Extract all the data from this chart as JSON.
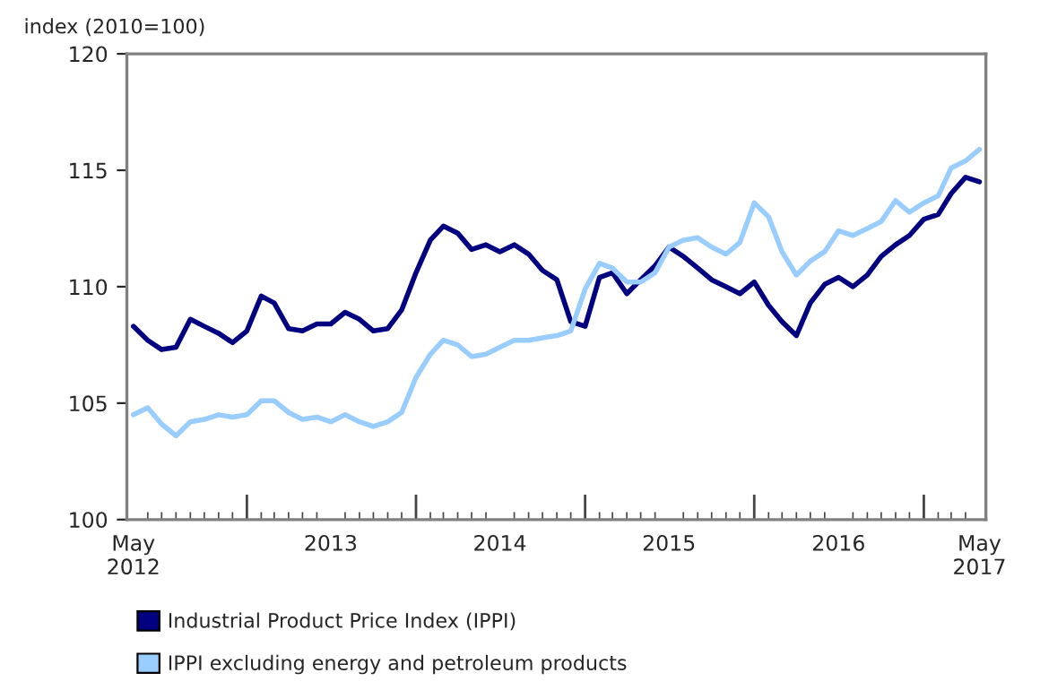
{
  "chart_data": {
    "type": "line",
    "ylabel": "index (2010=100)",
    "x": [
      "2012-05",
      "2012-06",
      "2012-07",
      "2012-08",
      "2012-09",
      "2012-10",
      "2012-11",
      "2012-12",
      "2013-01",
      "2013-02",
      "2013-03",
      "2013-04",
      "2013-05",
      "2013-06",
      "2013-07",
      "2013-08",
      "2013-09",
      "2013-10",
      "2013-11",
      "2013-12",
      "2014-01",
      "2014-02",
      "2014-03",
      "2014-04",
      "2014-05",
      "2014-06",
      "2014-07",
      "2014-08",
      "2014-09",
      "2014-10",
      "2014-11",
      "2014-12",
      "2015-01",
      "2015-02",
      "2015-03",
      "2015-04",
      "2015-05",
      "2015-06",
      "2015-07",
      "2015-08",
      "2015-09",
      "2015-10",
      "2015-11",
      "2015-12",
      "2016-01",
      "2016-02",
      "2016-03",
      "2016-04",
      "2016-05",
      "2016-06",
      "2016-07",
      "2016-08",
      "2016-09",
      "2016-10",
      "2016-11",
      "2016-12",
      "2017-01",
      "2017-02",
      "2017-03",
      "2017-04",
      "2017-05"
    ],
    "series": [
      {
        "name": "Industrial Product Price Index (IPPI)",
        "color": "#000080",
        "values": [
          108.3,
          107.7,
          107.3,
          107.4,
          108.6,
          108.3,
          108.0,
          107.6,
          108.1,
          109.6,
          109.3,
          108.2,
          108.1,
          108.4,
          108.4,
          108.9,
          108.6,
          108.1,
          108.2,
          109.0,
          110.6,
          112.0,
          112.6,
          112.3,
          111.6,
          111.8,
          111.5,
          111.8,
          111.4,
          110.7,
          110.3,
          108.5,
          108.3,
          110.4,
          110.6,
          109.7,
          110.3,
          110.9,
          111.7,
          111.3,
          110.8,
          110.3,
          110.0,
          109.7,
          110.2,
          109.2,
          108.5,
          107.9,
          109.3,
          110.1,
          110.4,
          110.0,
          110.5,
          111.3,
          111.8,
          112.2,
          112.9,
          113.1,
          114.0,
          114.7,
          114.5
        ]
      },
      {
        "name": "IPPI excluding energy and petroleum products",
        "color": "#99ccff",
        "values": [
          104.5,
          104.8,
          104.1,
          103.6,
          104.2,
          104.3,
          104.5,
          104.4,
          104.5,
          105.1,
          105.1,
          104.6,
          104.3,
          104.4,
          104.2,
          104.5,
          104.2,
          104.0,
          104.2,
          104.6,
          106.1,
          107.1,
          107.7,
          107.5,
          107.0,
          107.1,
          107.4,
          107.7,
          107.7,
          107.8,
          107.9,
          108.1,
          109.9,
          111.0,
          110.8,
          110.2,
          110.2,
          110.6,
          111.7,
          112.0,
          112.1,
          111.7,
          111.4,
          111.9,
          113.6,
          113.0,
          111.5,
          110.5,
          111.1,
          111.5,
          112.4,
          112.2,
          112.5,
          112.8,
          113.7,
          113.2,
          113.6,
          113.9,
          115.1,
          115.4,
          115.9
        ]
      }
    ],
    "xlim": [
      "2012-04-17",
      "2017-05-15"
    ],
    "xticks": [
      {
        "value": "2012-05",
        "label": "May\n2012"
      },
      {
        "value": "2013-01",
        "label": null
      },
      {
        "value": "2013-07",
        "label": "2013"
      },
      {
        "value": "2014-01",
        "label": null
      },
      {
        "value": "2014-07",
        "label": "2014"
      },
      {
        "value": "2015-01",
        "label": null
      },
      {
        "value": "2015-07",
        "label": "2015"
      },
      {
        "value": "2016-01",
        "label": null
      },
      {
        "value": "2016-07",
        "label": "2016"
      },
      {
        "value": "2017-01",
        "label": null
      },
      {
        "value": "2017-05",
        "label": "May\n2017"
      }
    ],
    "ylim": [
      100,
      120
    ],
    "yticks": [
      100,
      105,
      110,
      115,
      120
    ],
    "grid": false,
    "legend": "bottom",
    "line_style": "solid",
    "marker": "none"
  }
}
